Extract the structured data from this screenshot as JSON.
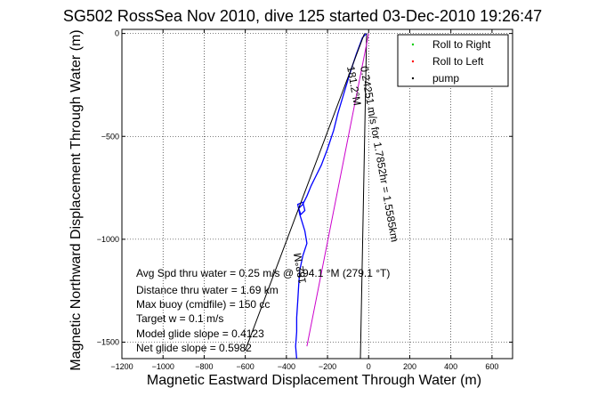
{
  "chart_data": {
    "type": "line",
    "title": "SG502 RossSea Nov 2010, dive 125 started 03-Dec-2010 19:26:47",
    "xlabel": "Magnetic Eastward Displacement Through Water (m)",
    "ylabel": "Magnetic Northward Displacement Through Water (m)",
    "xlim": [
      -1200,
      700
    ],
    "ylim": [
      -1580,
      20
    ],
    "xticks": [
      -1200,
      -1000,
      -800,
      -600,
      -400,
      -200,
      0,
      200,
      400,
      600
    ],
    "yticks": [
      0,
      -500,
      -1000,
      -1500
    ],
    "grid": true,
    "legend_position": "top-right",
    "legend": [
      {
        "label": "Roll to Right",
        "color": "#00cc00"
      },
      {
        "label": "Roll to Left",
        "color": "#ff0000"
      },
      {
        "label": "pump",
        "color": "#000000"
      }
    ],
    "series": [
      {
        "color": "#0000ff",
        "x": [
          -10,
          -30,
          -60,
          -90,
          -120,
          -150,
          -170,
          -200,
          -230,
          -260,
          -280,
          -300,
          -320,
          -340,
          -330,
          -310,
          -320,
          -345,
          -335,
          -310,
          -300,
          -320,
          -335,
          -340,
          -345,
          -350,
          -350,
          -355,
          -350
        ],
        "y": [
          0,
          -20,
          -100,
          -190,
          -290,
          -390,
          -470,
          -560,
          -640,
          -700,
          -740,
          -790,
          -830,
          -850,
          -880,
          -860,
          -820,
          -830,
          -880,
          -960,
          -1020,
          -1080,
          -1150,
          -1220,
          -1300,
          -1380,
          -1450,
          -1520,
          -1580
        ]
      },
      {
        "color": "#000000",
        "x": [
          -20,
          -600
        ],
        "y": [
          0,
          -1540
        ]
      },
      {
        "color": "#000000",
        "x": [
          -10,
          -40
        ],
        "y": [
          0,
          -1580
        ]
      },
      {
        "color": "#cc00cc",
        "x": [
          0,
          -300
        ],
        "y": [
          0,
          -1520
        ]
      }
    ],
    "annotations": [
      "Avg Spd thru water = 0.25 m/s @ 194.1 °M (279.1 °T)",
      "Distance thru water = 1.69 km",
      "Max buoy (cmdfile) = 150 cc",
      "Target w = 0.1 m/s",
      "Model glide slope = 0.4123",
      "Net glide slope = 0.5982"
    ],
    "rotated_labels": [
      "0.24251 m/s for 1.7852hr = 1.5585km",
      "181.2°M",
      "182°M"
    ]
  }
}
